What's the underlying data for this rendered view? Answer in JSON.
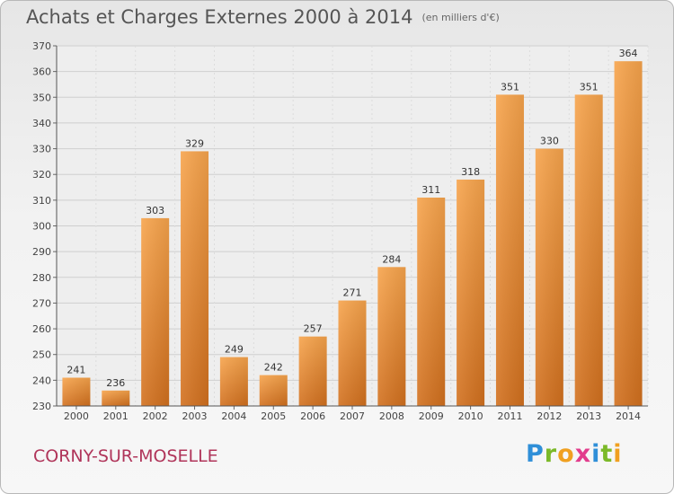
{
  "title": "Achats et Charges Externes 2000 à 2014",
  "subtitle": "(en milliers d'€)",
  "town": "CORNY-SUR-MOSELLE",
  "logo": {
    "letters": [
      {
        "ch": "P",
        "color": "#2f8fd8"
      },
      {
        "ch": "r",
        "color": "#7bb928"
      },
      {
        "ch": "o",
        "color": "#f0a020"
      },
      {
        "ch": "x",
        "color": "#e23c8c"
      },
      {
        "ch": "i",
        "color": "#2f8fd8"
      },
      {
        "ch": "t",
        "color": "#7bb928"
      },
      {
        "ch": "i",
        "color": "#f0a020"
      }
    ]
  },
  "chart_data": {
    "type": "bar",
    "title": "Achats et Charges Externes 2000 à 2014",
    "subtitle": "(en milliers d'€)",
    "categories": [
      "2000",
      "2001",
      "2002",
      "2003",
      "2004",
      "2005",
      "2006",
      "2007",
      "2008",
      "2009",
      "2010",
      "2011",
      "2012",
      "2013",
      "2014"
    ],
    "values": [
      241,
      236,
      303,
      329,
      249,
      242,
      257,
      271,
      284,
      311,
      318,
      351,
      330,
      351,
      364
    ],
    "ylim": [
      230,
      370
    ],
    "yticks": [
      230,
      240,
      250,
      260,
      270,
      280,
      290,
      300,
      310,
      320,
      330,
      340,
      350,
      360,
      370
    ],
    "grid": true,
    "bar_color_top": "#f7a44c",
    "bar_color_bottom": "#d2701e"
  }
}
